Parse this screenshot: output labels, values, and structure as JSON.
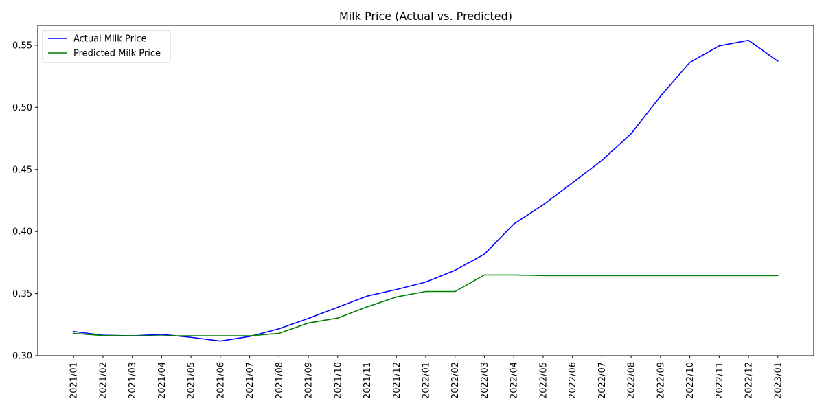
{
  "chart_data": {
    "type": "line",
    "title": "Milk Price (Actual vs. Predicted)",
    "xlabel": "",
    "ylabel": "",
    "categories": [
      "2021/01",
      "2021/02",
      "2021/03",
      "2021/04",
      "2021/05",
      "2021/06",
      "2021/07",
      "2021/08",
      "2021/09",
      "2021/10",
      "2021/11",
      "2021/12",
      "2022/01",
      "2022/02",
      "2022/03",
      "2022/04",
      "2022/05",
      "2022/06",
      "2022/07",
      "2022/08",
      "2022/09",
      "2022/10",
      "2022/11",
      "2022/12",
      "2023/01"
    ],
    "ylim": [
      0.3,
      0.566
    ],
    "yticks": [
      "0.30",
      "0.35",
      "0.40",
      "0.45",
      "0.50",
      "0.55"
    ],
    "grid": false,
    "legend_position": "top-left",
    "series": [
      {
        "name": "Actual Milk Price",
        "color": "#0000ff",
        "values": [
          0.3195,
          0.3165,
          0.316,
          0.3172,
          0.3148,
          0.3118,
          0.3155,
          0.3217,
          0.33,
          0.339,
          0.348,
          0.3533,
          0.3593,
          0.3688,
          0.3818,
          0.406,
          0.4215,
          0.4392,
          0.4572,
          0.4788,
          0.509,
          0.5362,
          0.5495,
          0.554,
          0.5372
        ]
      },
      {
        "name": "Predicted Milk Price",
        "color": "#008000",
        "values": [
          0.318,
          0.3162,
          0.316,
          0.316,
          0.316,
          0.316,
          0.316,
          0.318,
          0.3263,
          0.3303,
          0.3393,
          0.3473,
          0.3517,
          0.3517,
          0.365,
          0.365,
          0.3645,
          0.3645,
          0.3645,
          0.3645,
          0.3645,
          0.3645,
          0.3645,
          0.3645,
          0.3645
        ]
      }
    ]
  }
}
